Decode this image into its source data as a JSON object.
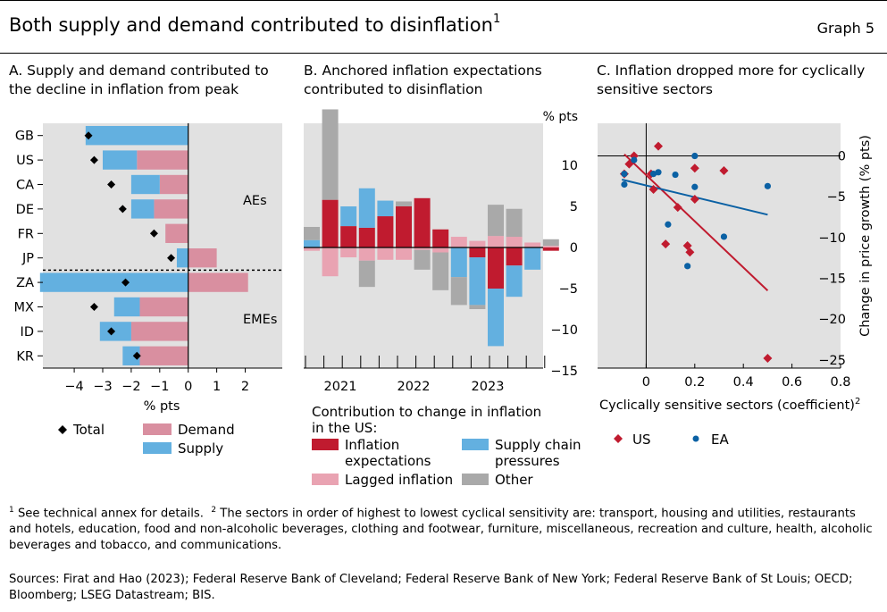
{
  "header": {
    "title": "Both supply and demand contributed to disinflation",
    "title_sup": "1",
    "graph_label": "Graph 5"
  },
  "panel_a": {
    "title": "A. Supply and demand contributed to the decline in inflation from peak",
    "xlabel": "% pts",
    "group_labels": [
      "AEs",
      "EMEs"
    ],
    "legend": {
      "total": "Total",
      "demand": "Demand",
      "supply": "Supply"
    }
  },
  "panel_b": {
    "title": "B. Anchored inflation expectations contributed to disinflation",
    "unit": "% pts",
    "legend_title": "Contribution to change in inflation in the US:",
    "legend": {
      "expectations": "Inflation expectations",
      "supply_chain": "Supply chain pressures",
      "lagged": "Lagged inflation",
      "other": "Other"
    }
  },
  "panel_c": {
    "title": "C. Inflation dropped more for cyclically sensitive sectors",
    "xlabel": "Cyclically sensitive sectors (coefficient)",
    "xlabel_sup": "2",
    "ylabel": "Change in price growth (% pts)",
    "legend": {
      "us": "US",
      "ea": "EA"
    }
  },
  "footnotes": {
    "note1_num": "1",
    "note1": "See technical annex for details.",
    "note2_num": "2",
    "note2": "The sectors in order of highest to lowest cyclical sensitivity are: transport, housing and utilities, restaurants and hotels, education, food and non-alcoholic beverages, clothing and footwear, furniture, miscellaneous, recreation and culture, health, alcoholic beverages and tobacco, and communications.",
    "sources": "Sources: Firat and Hao (2023); Federal Reserve Bank of Cleveland; Federal Reserve Bank of New York; Federal Reserve Bank of St Louis; OECD; Bloomberg; LSEG Datastream; BIS."
  },
  "colors": {
    "panel_bg": "#e1e1e1",
    "demand": "#d98fa0",
    "supply": "#63b0e0",
    "expectations": "#c01b2f",
    "lagged": "#e9a3b2",
    "supply_chain": "#63b0e0",
    "other": "#a9a9a9",
    "us": "#c01b2f",
    "ea": "#0b61a4"
  },
  "chart_data": [
    {
      "id": "panel_a",
      "type": "bar",
      "orientation": "horizontal",
      "stacked": true,
      "categories": [
        "GB",
        "US",
        "CA",
        "DE",
        "FR",
        "JP",
        "ZA",
        "MX",
        "ID",
        "KR"
      ],
      "groups": [
        {
          "name": "AEs",
          "categories": [
            "GB",
            "US",
            "CA",
            "DE",
            "FR",
            "JP"
          ]
        },
        {
          "name": "EMEs",
          "categories": [
            "ZA",
            "MX",
            "ID",
            "KR"
          ]
        }
      ],
      "series": [
        {
          "name": "Demand",
          "values": [
            0.0,
            -1.8,
            -1.0,
            -1.2,
            -0.8,
            1.0,
            2.1,
            -1.7,
            -2.0,
            -1.7
          ]
        },
        {
          "name": "Supply",
          "values": [
            -3.6,
            -1.2,
            -1.0,
            -0.8,
            0.0,
            -0.4,
            -5.2,
            -0.9,
            -1.1,
            -0.6
          ]
        },
        {
          "name": "Total",
          "values": [
            -3.5,
            -3.3,
            -2.7,
            -2.3,
            -1.2,
            -0.6,
            -2.2,
            -3.3,
            -2.7,
            -1.8
          ]
        }
      ],
      "xticks": [
        -4,
        -3,
        -2,
        -1,
        0,
        1,
        2
      ],
      "xlim": [
        -5.1,
        3.3
      ],
      "xlabel": "% pts"
    },
    {
      "id": "panel_b",
      "type": "bar",
      "stacked": true,
      "x": [
        "2020-Q3",
        "2020-Q4",
        "2021-Q1",
        "2021-Q2",
        "2021-Q3",
        "2021-Q4",
        "2022-Q1",
        "2022-Q2",
        "2022-Q3",
        "2022-Q4",
        "2023-Q1",
        "2023-Q2",
        "2023-Q3",
        "2023-Q4"
      ],
      "x_ticklabels": [
        "2021",
        "2022",
        "2023"
      ],
      "series": [
        {
          "name": "Inflation expectations",
          "values": [
            0.0,
            5.8,
            2.6,
            2.4,
            3.8,
            5.0,
            6.0,
            2.2,
            0.0,
            -1.2,
            -5.0,
            -2.2,
            0.0,
            -0.4
          ]
        },
        {
          "name": "Lagged inflation",
          "values": [
            -0.4,
            -3.5,
            -1.2,
            -1.6,
            -1.5,
            -1.5,
            -0.3,
            -0.6,
            1.3,
            0.8,
            1.4,
            1.3,
            0.6,
            0.2
          ]
        },
        {
          "name": "Supply chain pressures",
          "values": [
            0.9,
            0.0,
            2.4,
            4.8,
            1.9,
            0.0,
            0.0,
            0.0,
            -3.6,
            -5.8,
            -7.0,
            -3.8,
            -2.7,
            0.0
          ]
        },
        {
          "name": "Other",
          "values": [
            1.6,
            11.0,
            0.0,
            -3.2,
            0.0,
            0.6,
            -2.4,
            -4.6,
            -3.4,
            -0.5,
            3.8,
            3.4,
            0.0,
            0.8
          ]
        }
      ],
      "yticks": [
        -15,
        -10,
        -5,
        0,
        5,
        10
      ],
      "ylim": [
        -15,
        15
      ],
      "ylabel": "% pts"
    },
    {
      "id": "panel_c",
      "type": "scatter",
      "series": [
        {
          "name": "US",
          "x": [
            -0.07,
            -0.05,
            0.05,
            0.02,
            0.2,
            0.32,
            -0.09,
            0.03,
            0.2,
            0.13,
            0.18,
            0.08,
            0.17,
            0.5
          ],
          "y": [
            -1.0,
            0.0,
            1.2,
            -2.2,
            -1.5,
            -1.8,
            -2.2,
            -4.1,
            -5.3,
            -6.3,
            -11.8,
            -10.8,
            -11.0,
            -24.8
          ]
        },
        {
          "name": "EA",
          "x": [
            -0.05,
            -0.09,
            -0.09,
            0.03,
            0.05,
            0.12,
            0.2,
            0.2,
            0.09,
            0.5,
            0.32,
            0.17
          ],
          "y": [
            -0.5,
            -2.2,
            -3.5,
            -2.2,
            -2.0,
            -2.3,
            0.0,
            -3.8,
            -8.4,
            -3.7,
            -9.9,
            -13.5
          ]
        },
        {
          "name": "US fit",
          "x": [
            -0.09,
            0.5
          ],
          "y": [
            0.2,
            -16.5
          ]
        },
        {
          "name": "EA fit",
          "x": [
            -0.1,
            0.5
          ],
          "y": [
            -2.9,
            -7.2
          ]
        }
      ],
      "xticks": [
        0,
        0.2,
        0.4,
        0.6,
        0.8
      ],
      "xlim": [
        -0.2,
        0.8
      ],
      "yticks": [
        -25,
        -20,
        -15,
        -10,
        -5,
        0
      ],
      "ylim": [
        -26,
        4
      ],
      "xlabel": "Cyclically sensitive sectors (coefficient)",
      "ylabel": "Change in price growth (% pts)"
    }
  ]
}
